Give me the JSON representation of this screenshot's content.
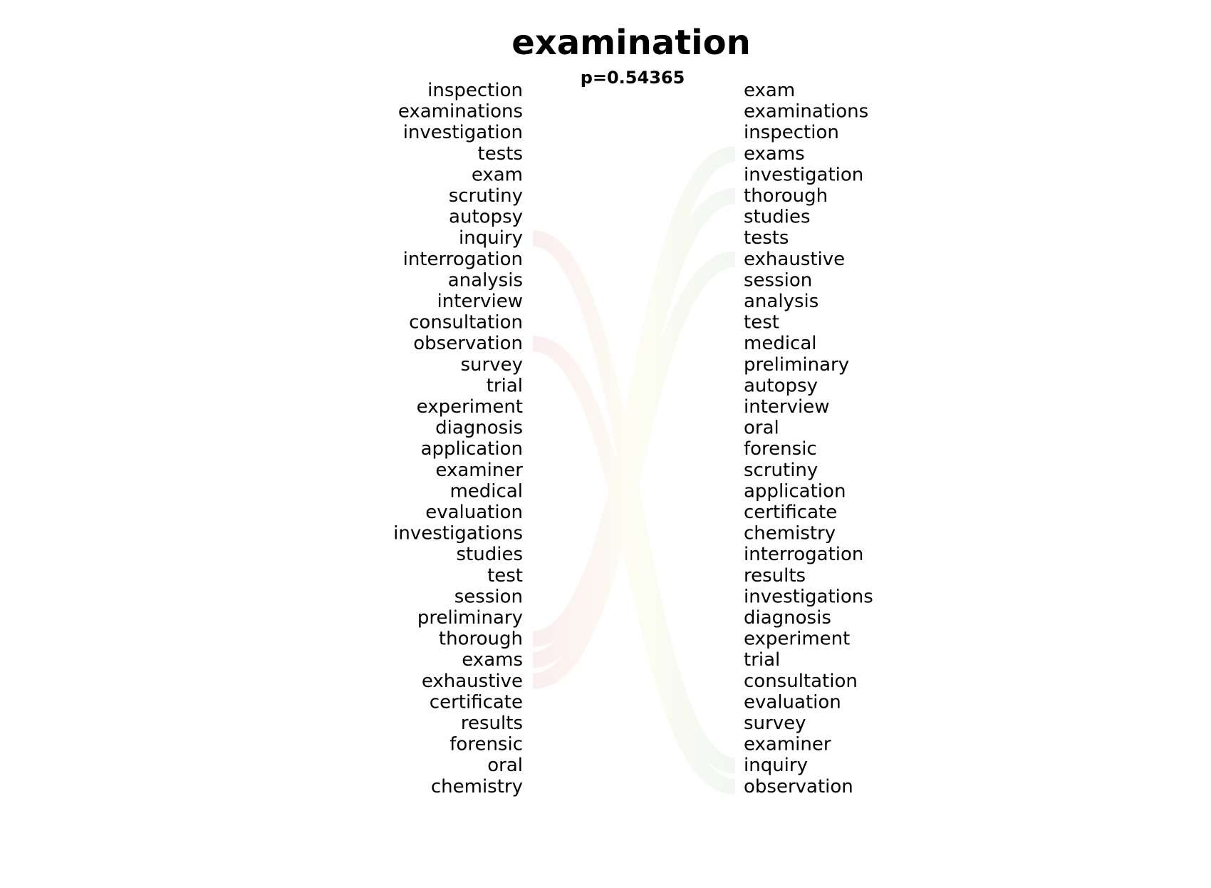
{
  "title": "examination",
  "subtitle": "p=0.54365",
  "left_list": [
    "inspection",
    "examinations",
    "investigation",
    "tests",
    "exam",
    "scrutiny",
    "autopsy",
    "inquiry",
    "interrogation",
    "analysis",
    "interview",
    "consultation",
    "observation",
    "survey",
    "trial",
    "experiment",
    "diagnosis",
    "application",
    "examiner",
    "medical",
    "evaluation",
    "investigations",
    "studies",
    "test",
    "session",
    "preliminary",
    "thorough",
    "exams",
    "exhaustive",
    "certificate",
    "results",
    "forensic",
    "oral",
    "chemistry"
  ],
  "right_list": [
    "exam",
    "examinations",
    "inspection",
    "exams",
    "investigation",
    "thorough",
    "studies",
    "tests",
    "exhaustive",
    "session",
    "analysis",
    "test",
    "medical",
    "preliminary",
    "autopsy",
    "interview",
    "oral",
    "forensic",
    "scrutiny",
    "application",
    "certificate",
    "chemistry",
    "interrogation",
    "results",
    "investigations",
    "diagnosis",
    "experiment",
    "trial",
    "consultation",
    "evaluation",
    "survey",
    "examiner",
    "inquiry",
    "observation"
  ],
  "links": [
    {
      "word": "inquiry",
      "left_rank": 8,
      "right_rank": 33
    },
    {
      "word": "observation",
      "left_rank": 13,
      "right_rank": 34
    },
    {
      "word": "thorough",
      "left_rank": 27,
      "right_rank": 6
    },
    {
      "word": "exams",
      "left_rank": 28,
      "right_rank": 4
    },
    {
      "word": "exhaustive",
      "left_rank": 29,
      "right_rank": 9
    }
  ],
  "colors": {
    "rise": "#f2f7f3",
    "fall": "#fbeef0",
    "mid": "#fdfdf2",
    "text": "#000000"
  }
}
